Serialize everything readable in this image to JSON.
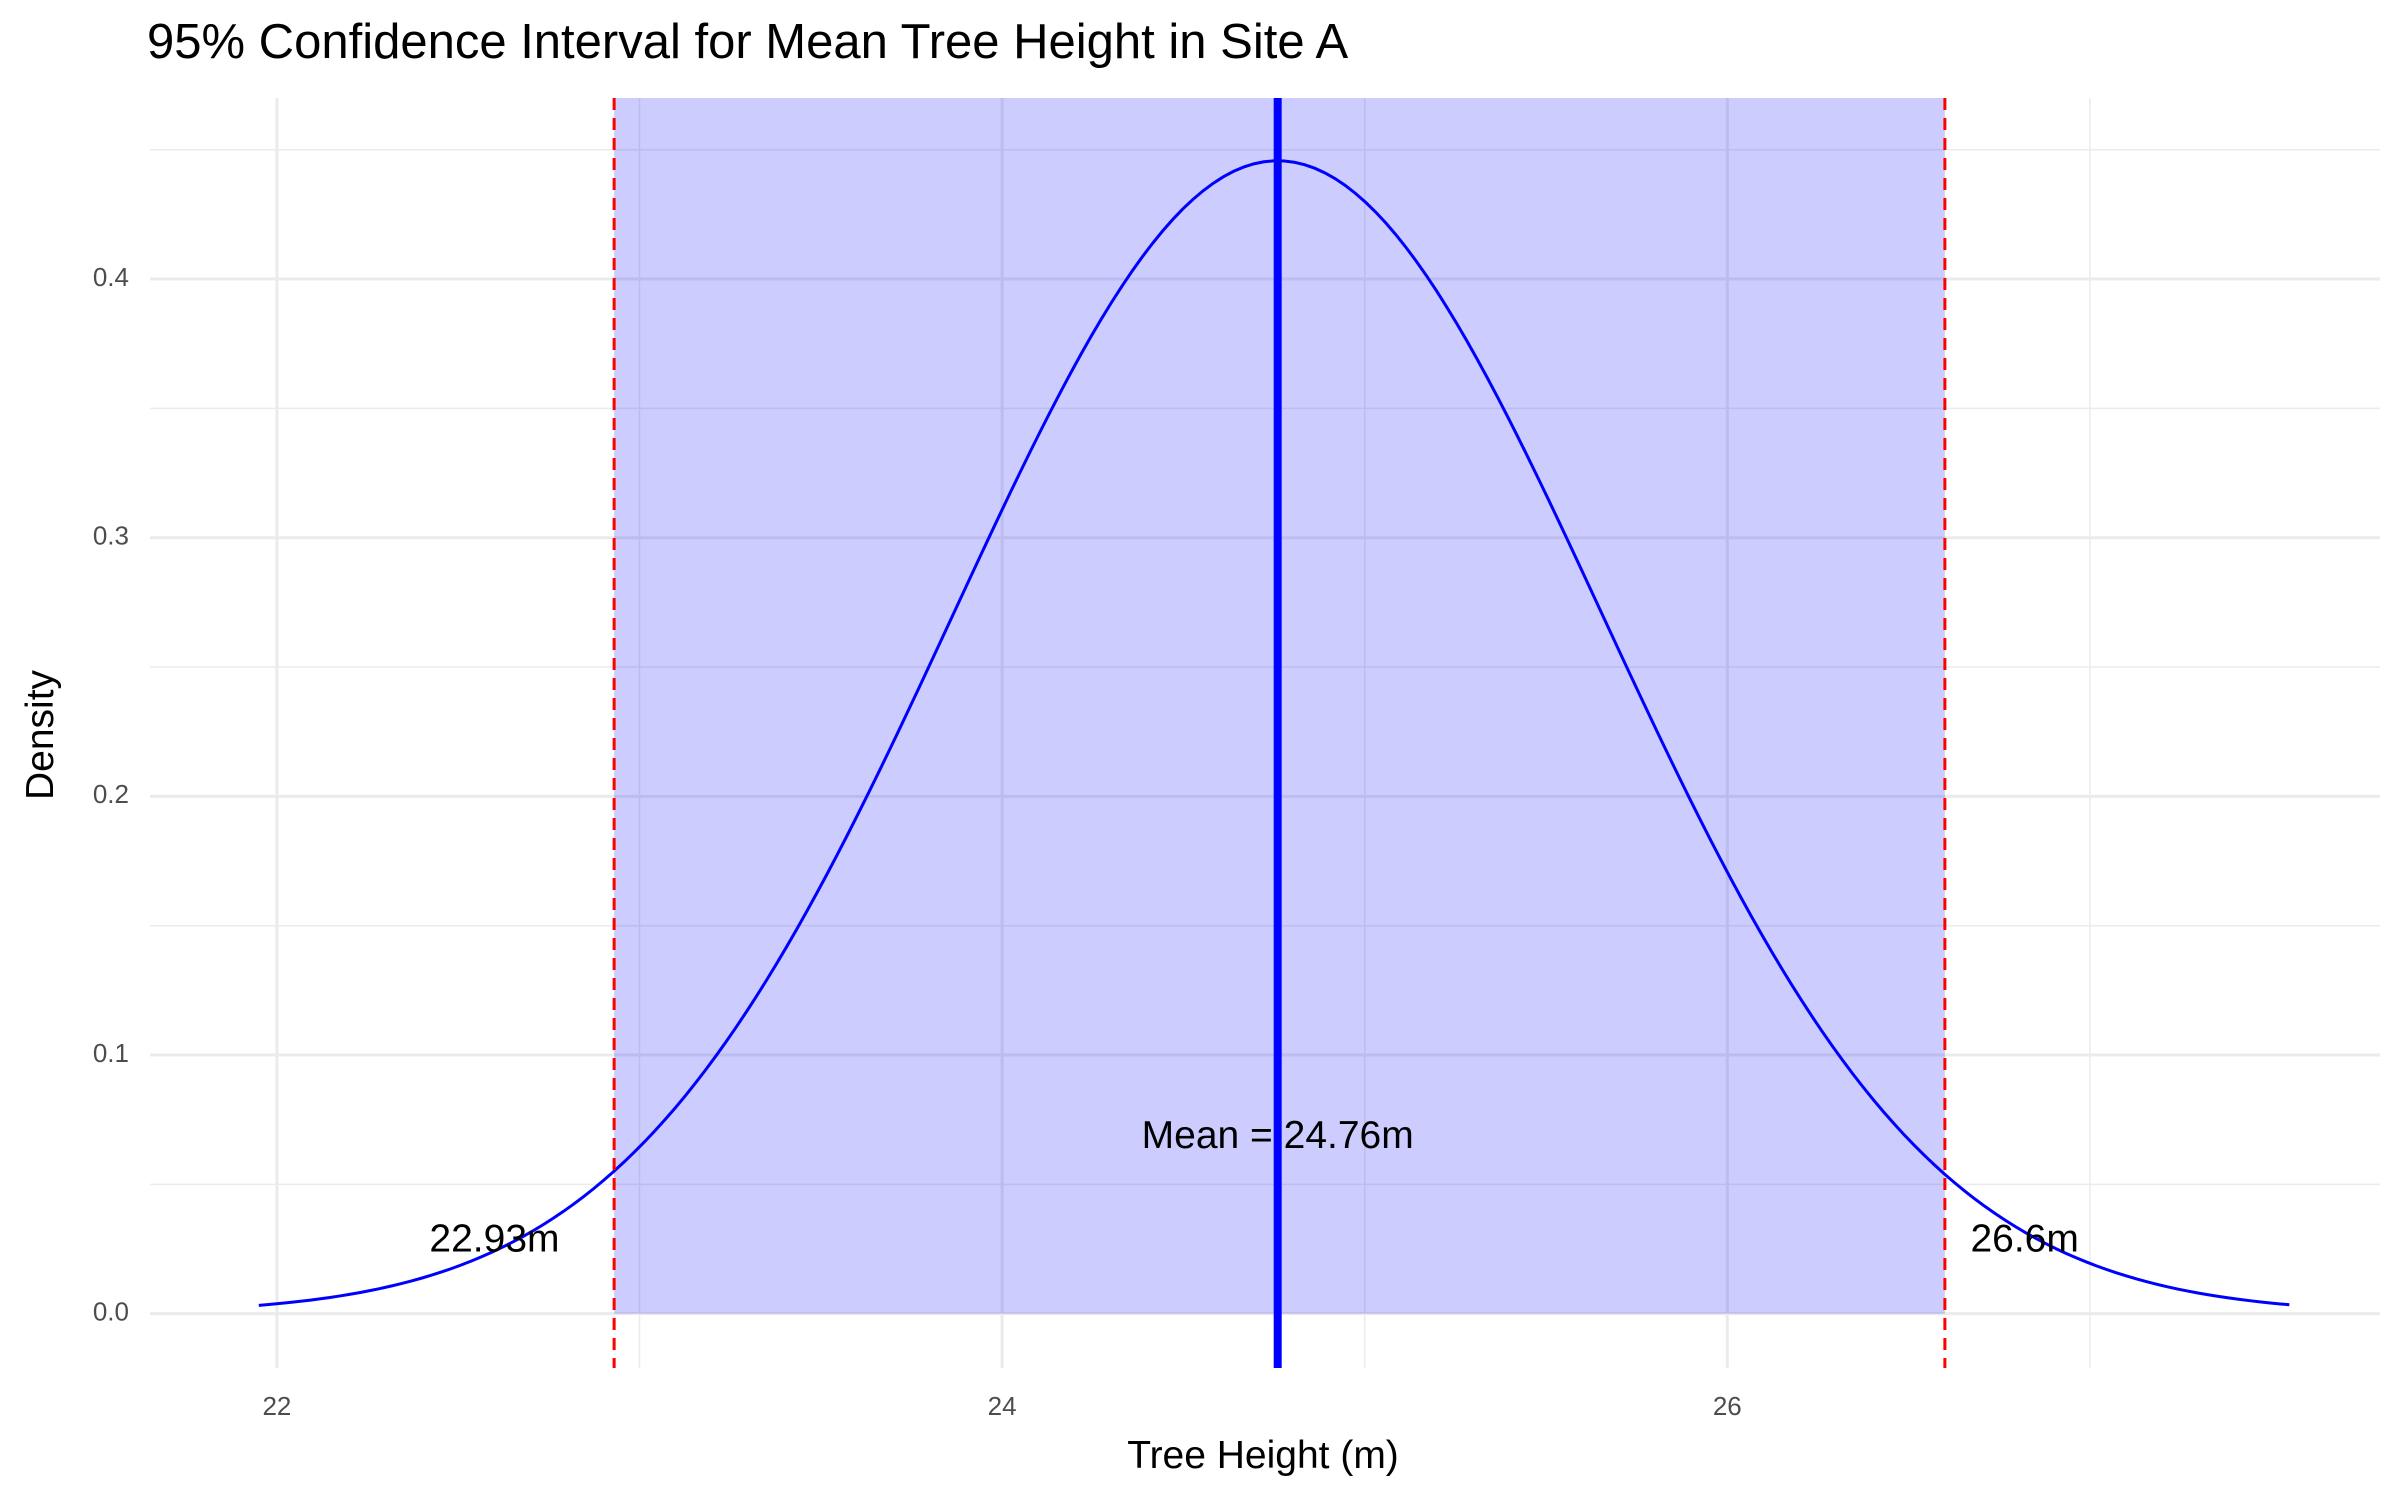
{
  "chart_data": {
    "type": "area",
    "title": "95% Confidence Interval for Mean Tree Height in Site A",
    "xlabel": "Tree Height (m)",
    "ylabel": "Density",
    "xlim": [
      21.65,
      27.8
    ],
    "ylim": [
      -0.021,
      0.47
    ],
    "x_ticks": [
      22,
      24,
      26
    ],
    "x_tick_labels": [
      "22",
      "24",
      "26"
    ],
    "x_minor_ticks": [
      23,
      25,
      27
    ],
    "y_ticks": [
      0.0,
      0.1,
      0.2,
      0.3,
      0.4
    ],
    "y_tick_labels": [
      "0.0",
      "0.1",
      "0.2",
      "0.3",
      "0.4"
    ],
    "y_minor_ticks": [
      0.05,
      0.15,
      0.25,
      0.35,
      0.45
    ],
    "grid": true,
    "curve": {
      "distribution": "normal",
      "mean": 24.76,
      "sd": 0.895,
      "x_range": [
        21.95,
        27.55
      ],
      "color": "#0000ff"
    },
    "ci": {
      "lower": 22.93,
      "upper": 26.6,
      "shade_color": "#0000ff",
      "shade_opacity": 0.2,
      "bound_line_color": "#ff0000"
    },
    "mean_line": {
      "x": 24.76,
      "color": "#0000ff"
    },
    "annotations": [
      {
        "id": "mean",
        "text": "Mean = 24.76m",
        "x": 24.76,
        "y": 0.068
      },
      {
        "id": "lower",
        "text": "22.93m",
        "x": 22.6,
        "y": 0.028
      },
      {
        "id": "upper",
        "text": "26.6m",
        "x": 26.82,
        "y": 0.028
      }
    ]
  }
}
